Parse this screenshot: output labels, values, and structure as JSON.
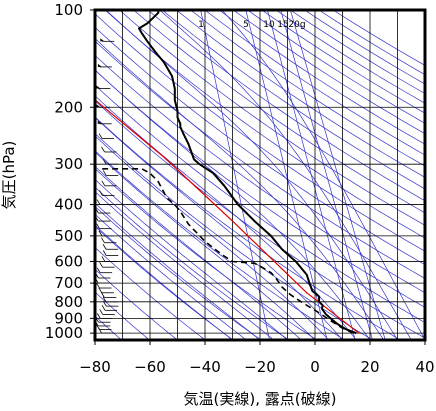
{
  "chart_data": {
    "type": "line",
    "xlabel": "気温(実線), 露点(破線)",
    "ylabel": "気圧(hPa)",
    "x_unit": "°C",
    "y_unit": "hPa",
    "y_scale": "log",
    "xlim": [
      -80,
      40
    ],
    "ylim": [
      1050,
      100
    ],
    "x_ticks": [
      -80,
      -60,
      -40,
      -20,
      0,
      20,
      40
    ],
    "x_tick_labels": [
      "−80",
      "−60",
      "−40",
      "−20",
      "0",
      "20",
      "40"
    ],
    "y_ticks": [
      100,
      200,
      300,
      400,
      500,
      600,
      700,
      800,
      900,
      1000
    ],
    "y_tick_labels": [
      "100",
      "200",
      "300",
      "400",
      "500",
      "600",
      "700",
      "800",
      "900",
      "1000"
    ],
    "mixing_ratio_labels": [
      {
        "text": "1",
        "value": 1
      },
      {
        "text": "5",
        "value": 5
      },
      {
        "text": "10",
        "value": 10
      },
      {
        "text": "15",
        "value": 15
      },
      {
        "text": "20g",
        "value": 20
      }
    ],
    "grid": true,
    "colors": {
      "temperature": "#000000",
      "dewpoint": "#000000",
      "adiabats": "#3333cc",
      "parcel": "#dd0000",
      "grid": "#000000"
    },
    "series": [
      {
        "style": "solid",
        "points": [
          [
            15,
            1000
          ],
          [
            11,
            970
          ],
          [
            8,
            935
          ],
          [
            6,
            905
          ],
          [
            4,
            875
          ],
          [
            2.5,
            840
          ],
          [
            2.8,
            820
          ],
          [
            1.5,
            800
          ],
          [
            1.5,
            770
          ],
          [
            -1,
            740
          ],
          [
            -2,
            700
          ],
          [
            -3,
            660
          ],
          [
            -7,
            600
          ],
          [
            -12,
            550
          ],
          [
            -16,
            500
          ],
          [
            -22,
            450
          ],
          [
            -28,
            400
          ],
          [
            -33,
            350
          ],
          [
            -37,
            320
          ],
          [
            -42,
            300
          ],
          [
            -44,
            290
          ],
          [
            -46,
            260
          ],
          [
            -48,
            240
          ],
          [
            -49,
            230
          ],
          [
            -49,
            225
          ],
          [
            -50,
            215
          ],
          [
            -50,
            205
          ],
          [
            -51,
            190
          ],
          [
            -51,
            175
          ],
          [
            -52,
            160
          ],
          [
            -55,
            145
          ],
          [
            -58,
            135
          ],
          [
            -61,
            125
          ],
          [
            -63,
            118
          ],
          [
            -64,
            114
          ],
          [
            -61,
            110
          ],
          [
            -59,
            106
          ],
          [
            -57,
            102
          ],
          [
            -57,
            100
          ]
        ]
      },
      {
        "style": "dashed",
        "points": [
          [
            14,
            1000
          ],
          [
            10,
            965
          ],
          [
            7,
            930
          ],
          [
            4,
            895
          ],
          [
            1,
            860
          ],
          [
            -3,
            820
          ],
          [
            -6,
            790
          ],
          [
            -9,
            760
          ],
          [
            -12,
            720
          ],
          [
            -14,
            680
          ],
          [
            -16,
            650
          ],
          [
            -20,
            620
          ],
          [
            -22,
            608
          ],
          [
            -30,
            600
          ],
          [
            -34,
            570
          ],
          [
            -40,
            520
          ],
          [
            -46,
            460
          ],
          [
            -49,
            420
          ],
          [
            -51,
            400
          ],
          [
            -54,
            380
          ],
          [
            -57,
            340
          ],
          [
            -60,
            320
          ],
          [
            -63,
            310
          ],
          [
            -78,
            310
          ]
        ]
      },
      {
        "style": "solid-red",
        "points": [
          [
            16,
            1000
          ],
          [
            -3,
            750
          ],
          [
            -30,
            450
          ],
          [
            -55,
            285
          ],
          [
            -85,
            175
          ]
        ]
      }
    ]
  }
}
